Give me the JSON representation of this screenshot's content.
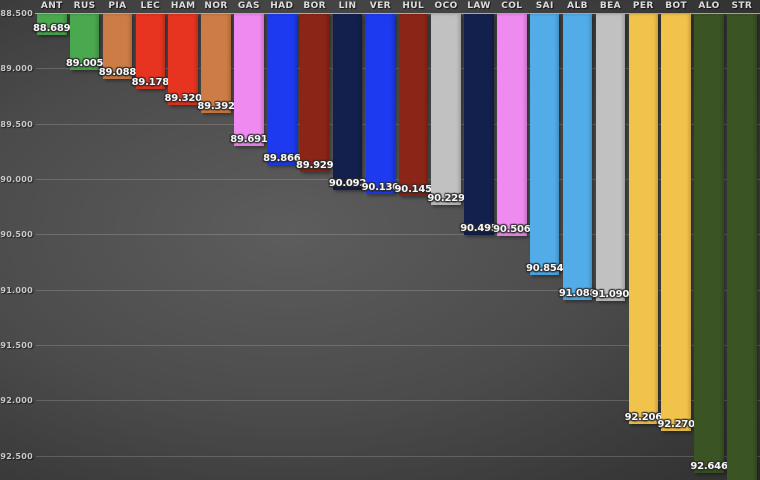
{
  "chart_data": {
    "type": "bar",
    "orientation": "vertical-hanging",
    "description": "Lap time comparison bar chart; bars hang from the 88.500 top axis downward, lower time is better",
    "categories": [
      "ANT",
      "RUS",
      "PIA",
      "LEC",
      "HAM",
      "NOR",
      "GAS",
      "HAD",
      "BOR",
      "LIN",
      "VER",
      "HUL",
      "OCO",
      "LAW",
      "COL",
      "SAI",
      "ALB",
      "BEA",
      "PER",
      "BOT",
      "ALO",
      "STR"
    ],
    "values": [
      88.689,
      89.005,
      89.088,
      89.178,
      89.32,
      89.392,
      89.691,
      89.866,
      89.929,
      90.092,
      90.13,
      90.145,
      90.229,
      90.495,
      90.506,
      90.854,
      91.088,
      91.09,
      92.206,
      92.27,
      92.646,
      null
    ],
    "value_labels": [
      "88.689",
      "89.005",
      "89.088",
      "89.178",
      "89.320",
      "89.392",
      "89.691",
      "89.866",
      "89.929",
      "90.092",
      "90.130",
      "90.145",
      "90.229",
      "90.495",
      "90.506",
      "90.854",
      "91.088",
      "91.090",
      "92.206",
      "92.270",
      "92.646",
      ""
    ],
    "bar_colors": [
      "#4aa84e",
      "#4aa84e",
      "#cd7c45",
      "#e63420",
      "#e63420",
      "#cd7c45",
      "#ee8af0",
      "#1d3af0",
      "#8b2517",
      "#13204e",
      "#1d3af0",
      "#8b2517",
      "#c1c1c1",
      "#13204e",
      "#ee8af0",
      "#51ace8",
      "#51ace8",
      "#c1c1c1",
      "#f2c34a",
      "#f2c34a",
      "#3a5423",
      "#3a5423"
    ],
    "cutoff_flags": [
      false,
      false,
      false,
      false,
      false,
      false,
      false,
      false,
      false,
      false,
      false,
      false,
      false,
      false,
      false,
      false,
      false,
      false,
      false,
      false,
      false,
      true
    ],
    "ytick_labels": [
      "88.500",
      "89.000",
      "89.500",
      "90.000",
      "90.500",
      "91.000",
      "91.500",
      "92.000",
      "92.500"
    ],
    "ytick_values": [
      88.5,
      89.0,
      89.5,
      90.0,
      90.5,
      91.0,
      91.5,
      92.0,
      92.5
    ],
    "ylim": [
      88.5,
      92.8
    ],
    "xlabel": "",
    "ylabel": "",
    "title": "",
    "grid": true,
    "legend": "none",
    "colors": {
      "background_center": "#5d5d5d",
      "background_edge": "#2a2a2a",
      "gridline": "rgba(255,255,255,0.17)",
      "axis_line": "rgba(255,255,255,0.55)",
      "tick_text": "#c9c9c9",
      "header_text": "#dcdcdc",
      "value_text": "#f8f8f8"
    }
  }
}
